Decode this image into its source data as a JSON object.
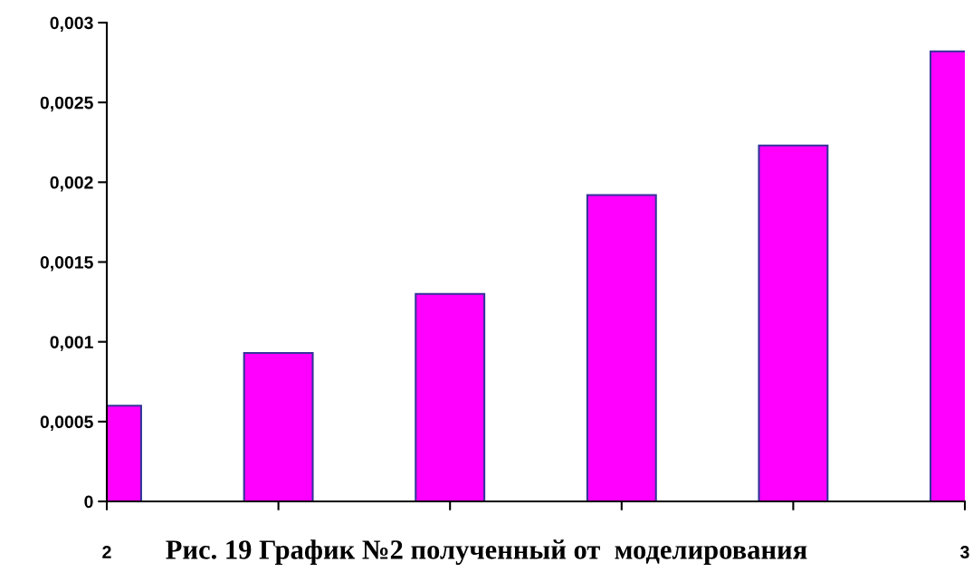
{
  "chart_data": {
    "type": "bar",
    "x": [
      2,
      2.2,
      2.4,
      2.6,
      2.8,
      3
    ],
    "values": [
      0.0006,
      0.00093,
      0.0013,
      0.00192,
      0.00223,
      0.00282
    ],
    "color": "#ff00ff",
    "xlim": [
      2,
      3
    ],
    "xticks": [
      2,
      {
        "value": 2.2,
        "label": null
      },
      {
        "value": 2.4,
        "label": null
      },
      {
        "value": 2.6,
        "label": null
      },
      {
        "value": 2.8,
        "label": null
      },
      3
    ],
    "ylim": [
      0,
      0.003
    ],
    "yticks": [
      0,
      {
        "value": 0.0005,
        "label": "0,0005"
      },
      {
        "value": 0.001,
        "label": "0,001"
      },
      {
        "value": 0.0015,
        "label": "0,0015"
      },
      {
        "value": 0.002,
        "label": "0,002"
      },
      {
        "value": 0.0025,
        "label": "0,0025"
      },
      {
        "value": 0.003,
        "label": "0,003"
      }
    ],
    "annotations": [
      "Рис. 19 График №2 полученный от  моделирования"
    ]
  }
}
